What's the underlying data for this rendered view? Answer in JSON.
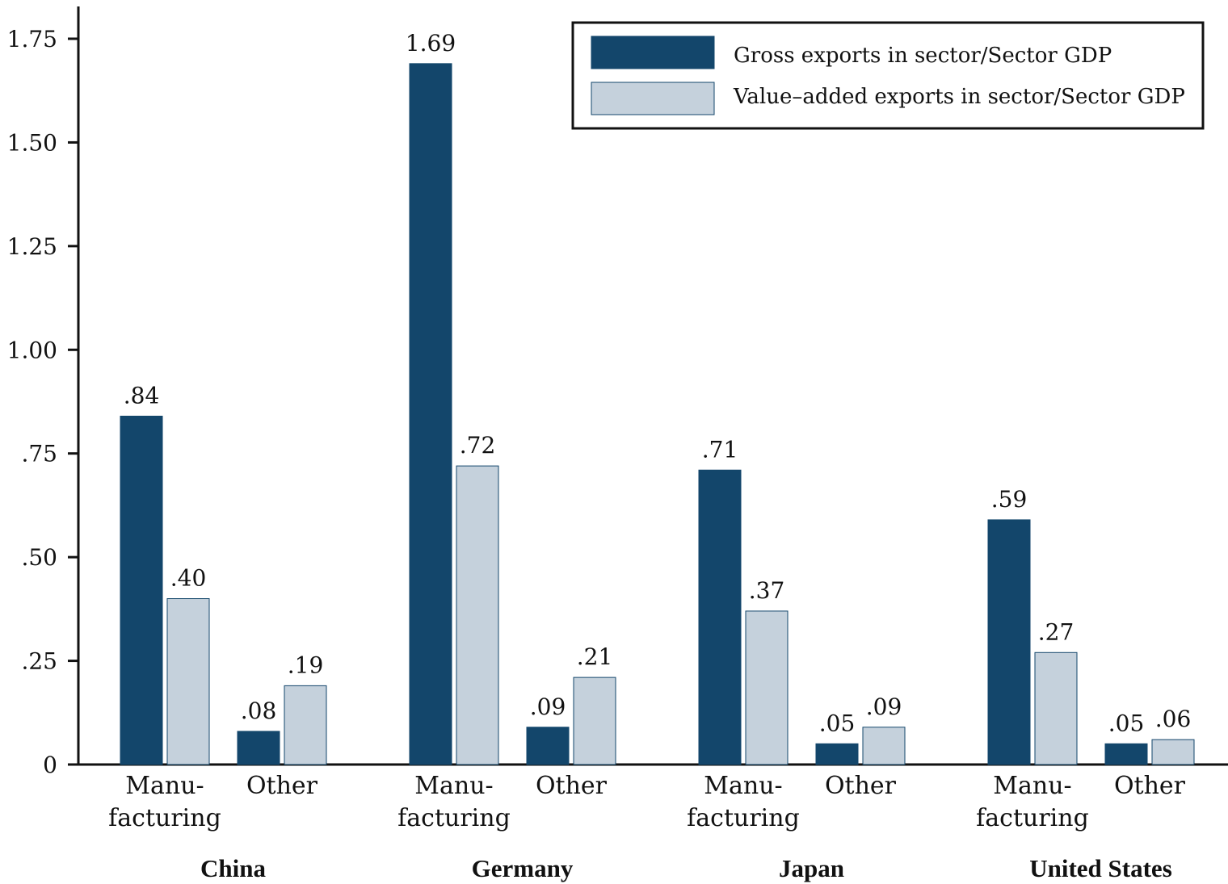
{
  "chart_data": {
    "type": "bar",
    "title": "",
    "xlabel": "",
    "ylabel": "",
    "ylim": [
      0,
      1.75
    ],
    "yticks": [
      {
        "value": 0,
        "label": "0"
      },
      {
        "value": 0.25,
        "label": ".25"
      },
      {
        "value": 0.5,
        "label": ".50"
      },
      {
        "value": 0.75,
        "label": ".75"
      },
      {
        "value": 1.0,
        "label": "1.00"
      },
      {
        "value": 1.25,
        "label": "1.25"
      },
      {
        "value": 1.5,
        "label": "1.50"
      },
      {
        "value": 1.75,
        "label": "1.75"
      }
    ],
    "grid": false,
    "legend_position": "top-right",
    "series": [
      {
        "name": "Gross exports in sector/Sector GDP",
        "color": "#13466b"
      },
      {
        "name": "Value–added exports in sector/Sector GDP",
        "color": "#c5d1dc"
      }
    ],
    "groups": [
      {
        "country": "China",
        "sectors": [
          {
            "label_lines": [
              "Manu-",
              "facturing"
            ],
            "values": [
              0.84,
              0.4
            ],
            "labels": [
              ".84",
              ".40"
            ]
          },
          {
            "label_lines": [
              "Other"
            ],
            "values": [
              0.08,
              0.19
            ],
            "labels": [
              ".08",
              ".19"
            ]
          }
        ]
      },
      {
        "country": "Germany",
        "sectors": [
          {
            "label_lines": [
              "Manu-",
              "facturing"
            ],
            "values": [
              1.69,
              0.72
            ],
            "labels": [
              "1.69",
              ".72"
            ]
          },
          {
            "label_lines": [
              "Other"
            ],
            "values": [
              0.09,
              0.21
            ],
            "labels": [
              ".09",
              ".21"
            ]
          }
        ]
      },
      {
        "country": "Japan",
        "sectors": [
          {
            "label_lines": [
              "Manu-",
              "facturing"
            ],
            "values": [
              0.71,
              0.37
            ],
            "labels": [
              ".71",
              ".37"
            ]
          },
          {
            "label_lines": [
              "Other"
            ],
            "values": [
              0.05,
              0.09
            ],
            "labels": [
              ".05",
              ".09"
            ]
          }
        ]
      },
      {
        "country": "United States",
        "sectors": [
          {
            "label_lines": [
              "Manu-",
              "facturing"
            ],
            "values": [
              0.59,
              0.27
            ],
            "labels": [
              ".59",
              ".27"
            ]
          },
          {
            "label_lines": [
              "Other"
            ],
            "values": [
              0.05,
              0.06
            ],
            "labels": [
              ".05",
              ".06"
            ]
          }
        ]
      }
    ]
  }
}
